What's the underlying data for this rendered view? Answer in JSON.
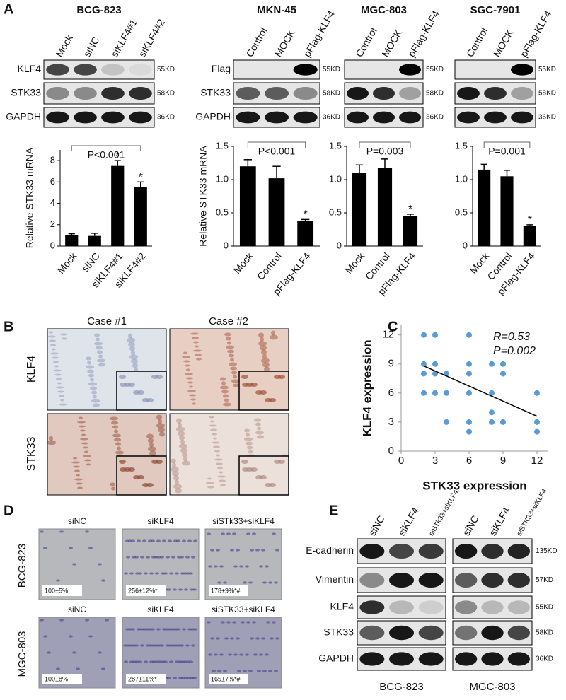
{
  "panel_labels": [
    "A",
    "B",
    "C",
    "D",
    "E"
  ],
  "panel_a": {
    "blots": [
      {
        "title": "BCG-823",
        "lanes": [
          "Mock",
          "siNC",
          "siKLF4#1",
          "siKLF4#2"
        ],
        "rows": [
          "KLF4",
          "STK33",
          "GAPDH"
        ],
        "markers": [
          "55KD",
          "58KD",
          "36KD"
        ]
      },
      {
        "title": "MKN-45",
        "lanes": [
          "Control",
          "MOCK",
          "pFlag-KLF4"
        ],
        "rows": [
          "Flag",
          "STK33",
          "GAPDH"
        ],
        "markers": [
          "55KD",
          "58KD",
          "36KD"
        ]
      },
      {
        "title": "MGC-803",
        "lanes": [
          "Control",
          "MOCK",
          "pFlag-KLF4"
        ],
        "markers": [
          "55KD",
          "58KD",
          "36KD"
        ]
      },
      {
        "title": "SGC-7901",
        "lanes": [
          "Control",
          "MOCK",
          "pFlag-KLF4"
        ],
        "markers": [
          "55KD",
          "58KD",
          "36KD"
        ]
      }
    ]
  },
  "chart_data": [
    {
      "type": "bar",
      "categories": [
        "Mock",
        "siNC",
        "siKLF4#1",
        "siKLF4#2"
      ],
      "values": [
        1.0,
        0.95,
        7.5,
        5.5
      ],
      "errors": [
        0.15,
        0.25,
        0.5,
        0.5
      ],
      "significance": [
        null,
        null,
        "*",
        "*"
      ],
      "color": "#000000",
      "ylim": [
        0,
        9
      ],
      "yticks": [
        0,
        2,
        4,
        6,
        8
      ],
      "y_label": "Relative STK33 mRNA",
      "annotations": [
        "P<0.001"
      ]
    },
    {
      "type": "bar",
      "categories": [
        "Mock",
        "Control",
        "pFlag-KLF4"
      ],
      "values": [
        1.2,
        1.02,
        0.38
      ],
      "errors": [
        0.1,
        0.18,
        0.02
      ],
      "significance": [
        null,
        null,
        "*"
      ],
      "color": "#000000",
      "ylim": [
        0,
        1.5
      ],
      "yticks": [
        0,
        0.5,
        {
          "value": 1,
          "label": "1.0"
        },
        1.5
      ],
      "y_label": "Relative STK33 mRNA",
      "annotations": [
        "P<0.001"
      ]
    },
    {
      "type": "bar",
      "categories": [
        "Mock",
        "Control",
        "pFlag-KLF4"
      ],
      "values": [
        1.1,
        1.18,
        0.45
      ],
      "errors": [
        0.12,
        0.13,
        0.03
      ],
      "significance": [
        null,
        null,
        "*"
      ],
      "color": "#000000",
      "ylim": [
        0,
        1.5
      ],
      "yticks": [
        0,
        0.5,
        {
          "value": 1,
          "label": "1.0"
        },
        1.5
      ],
      "annotations": [
        "P=0.003"
      ]
    },
    {
      "type": "bar",
      "categories": [
        "Mock",
        "Control",
        "pFlag-KLF4"
      ],
      "values": [
        1.15,
        1.05,
        0.3
      ],
      "errors": [
        0.08,
        0.09,
        0.02
      ],
      "significance": [
        null,
        null,
        "*"
      ],
      "color": "#000000",
      "ylim": [
        0,
        1.5
      ],
      "yticks": [
        0,
        0.5,
        {
          "value": 1,
          "label": "1.0"
        },
        1.5
      ],
      "annotations": [
        "P=0.001"
      ]
    },
    {
      "type": "scatter",
      "x": [
        2,
        3,
        6,
        2,
        3,
        6,
        8,
        9,
        2,
        3,
        4,
        6,
        9,
        2,
        3,
        4,
        6,
        8,
        12,
        8,
        4,
        6,
        8,
        9,
        12,
        6,
        12
      ],
      "y": [
        12,
        12,
        12,
        9,
        9,
        9,
        9,
        9,
        8,
        8,
        8,
        8,
        8,
        6,
        6,
        6,
        6,
        6,
        6,
        4,
        3,
        3,
        3,
        3,
        3,
        2,
        2
      ],
      "color": "#5b9bd5",
      "xlim": [
        0,
        13
      ],
      "ylim": [
        0,
        13
      ],
      "xticks": [
        0,
        3,
        6,
        9,
        12
      ],
      "yticks": [
        0,
        3,
        6,
        9,
        12
      ],
      "x_label": "STK33 expression",
      "y_label": "KLF4 expression",
      "trendline": {
        "x": [
          2,
          12
        ],
        "y": [
          8.8,
          3.6
        ]
      },
      "annotations": [
        "R=0.53",
        "P=0.002"
      ]
    }
  ],
  "panel_b": {
    "columns": [
      "Case #1",
      "Case #2"
    ],
    "rows": [
      "KLF4",
      "STK33"
    ]
  },
  "panel_d": {
    "rows": [
      {
        "name": "BCG-823",
        "columns": [
          "siNC",
          "siKLF4",
          "siSTk33+siKLF4"
        ],
        "labels": [
          "100±5%",
          "256±12%*",
          "178±9%*#"
        ]
      },
      {
        "name": "MGC-803",
        "columns": [
          "siNC",
          "siKLF4",
          "siSTK33+siKLF4"
        ],
        "labels": [
          "100±8%",
          "287±11%*",
          "165±7%*#"
        ]
      }
    ]
  },
  "panel_e": {
    "groups": [
      {
        "name": "BCG-823",
        "lanes": [
          "siNC",
          "siKLF4",
          "siSTk33+siKLF4"
        ]
      },
      {
        "name": "MGC-803",
        "lanes": [
          "siNC",
          "siKLF4",
          "siSTK33+siKLF4"
        ]
      }
    ],
    "rows": [
      "E-cadherin",
      "Vimentin",
      "KLF4",
      "STK33",
      "GAPDH"
    ],
    "markers": [
      "135KD",
      "57KD",
      "55KD",
      "58KD",
      "36KD"
    ]
  }
}
